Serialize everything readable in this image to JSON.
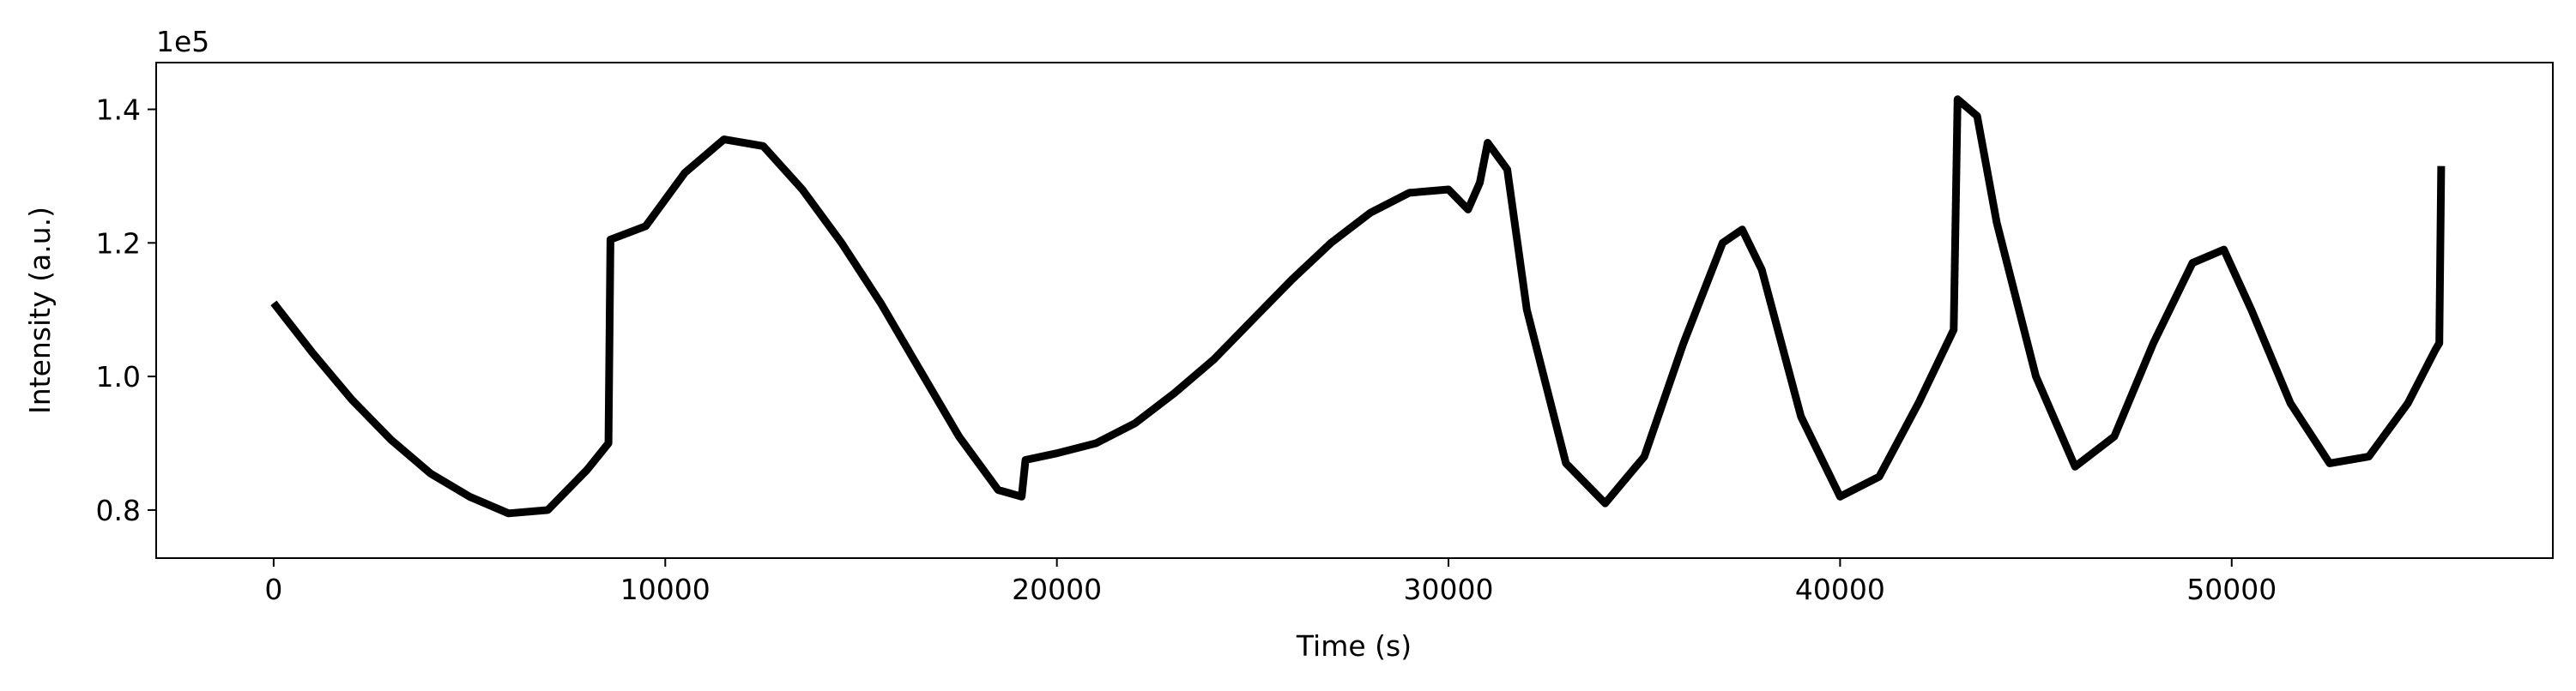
{
  "chart_data": {
    "type": "line",
    "title": "",
    "xlabel": "Time (s)",
    "ylabel": "Intensity (a.u.)",
    "y_scale_label": "1e5",
    "xlim": [
      -3000,
      58200
    ],
    "ylim": [
      72800,
      147000
    ],
    "x_ticks": [
      0,
      10000,
      20000,
      30000,
      40000,
      50000
    ],
    "x_tick_labels": [
      "0",
      "10000",
      "20000",
      "30000",
      "40000",
      "50000"
    ],
    "y_ticks": [
      80000,
      100000,
      120000,
      140000
    ],
    "y_tick_labels": [
      "0.8",
      "1.0",
      "1.2",
      "1.4"
    ],
    "grid": false,
    "legend": "none",
    "line_color": "#000000",
    "series": [
      {
        "x": [
          0,
          1000,
          2000,
          3000,
          4000,
          5000,
          6000,
          7000,
          8000,
          8550,
          8600,
          9500,
          10500,
          11500,
          12500,
          13500,
          14500,
          15500,
          16500,
          17500,
          18500,
          19100,
          19200,
          20000,
          21000,
          22000,
          23000,
          24000,
          25000,
          26000,
          27000,
          28000,
          29000,
          30000,
          30500,
          30800,
          31000,
          31500,
          32000,
          33000,
          34000,
          35000,
          36000,
          37000,
          37500,
          38000,
          39000,
          40000,
          41000,
          42000,
          42900,
          43000,
          43500,
          44000,
          45000,
          46000,
          47000,
          48000,
          49000,
          49800,
          50500,
          51500,
          52500,
          53500,
          54500,
          55200,
          55300,
          55350
        ],
        "y": [
          111000,
          103500,
          96500,
          90500,
          85500,
          82000,
          79500,
          80000,
          86000,
          90000,
          120500,
          122500,
          130500,
          135500,
          134500,
          128000,
          120000,
          111000,
          101000,
          91000,
          83000,
          82000,
          87500,
          88500,
          90000,
          93000,
          97500,
          102500,
          108500,
          114500,
          120000,
          124500,
          127500,
          128000,
          125000,
          129000,
          135000,
          131000,
          110000,
          87000,
          81000,
          88000,
          105000,
          120000,
          122000,
          116000,
          94000,
          82000,
          85000,
          96000,
          107000,
          141500,
          139000,
          123000,
          100000,
          86500,
          91000,
          105000,
          117000,
          119000,
          110000,
          96000,
          87000,
          88000,
          96000,
          104000,
          105000,
          131500
        ]
      }
    ]
  }
}
